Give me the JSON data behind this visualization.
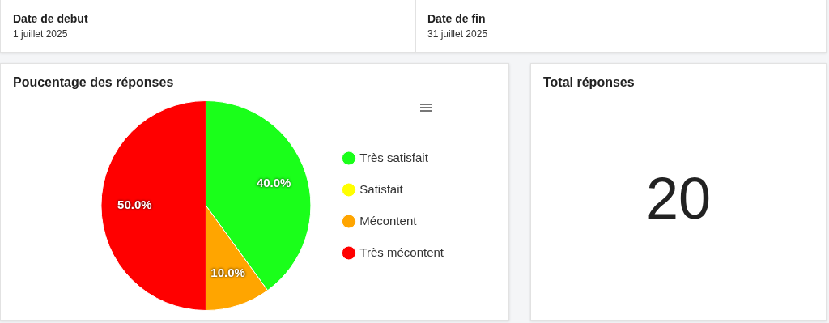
{
  "chart_data": [
    {
      "type": "other",
      "annotations": [
        "Date de debut",
        "1 juillet 2025",
        "Date de fin",
        "31 juillet 2025"
      ]
    },
    {
      "type": "pie",
      "title": "Poucentage des réponses",
      "categories": [
        "Très satisfait",
        "Satisfait",
        "Mécontent",
        "Très mécontent"
      ],
      "values": [
        40,
        0,
        10,
        50
      ],
      "colors": [
        "#1aff1a",
        "#ffff00",
        "#ffa500",
        "#ff0000"
      ],
      "value_labels": [
        "40.0%",
        null,
        "10.0%",
        "50.0%"
      ],
      "legend": "right"
    },
    {
      "type": "other",
      "title": "Total réponses",
      "annotations": [
        "20"
      ]
    }
  ]
}
